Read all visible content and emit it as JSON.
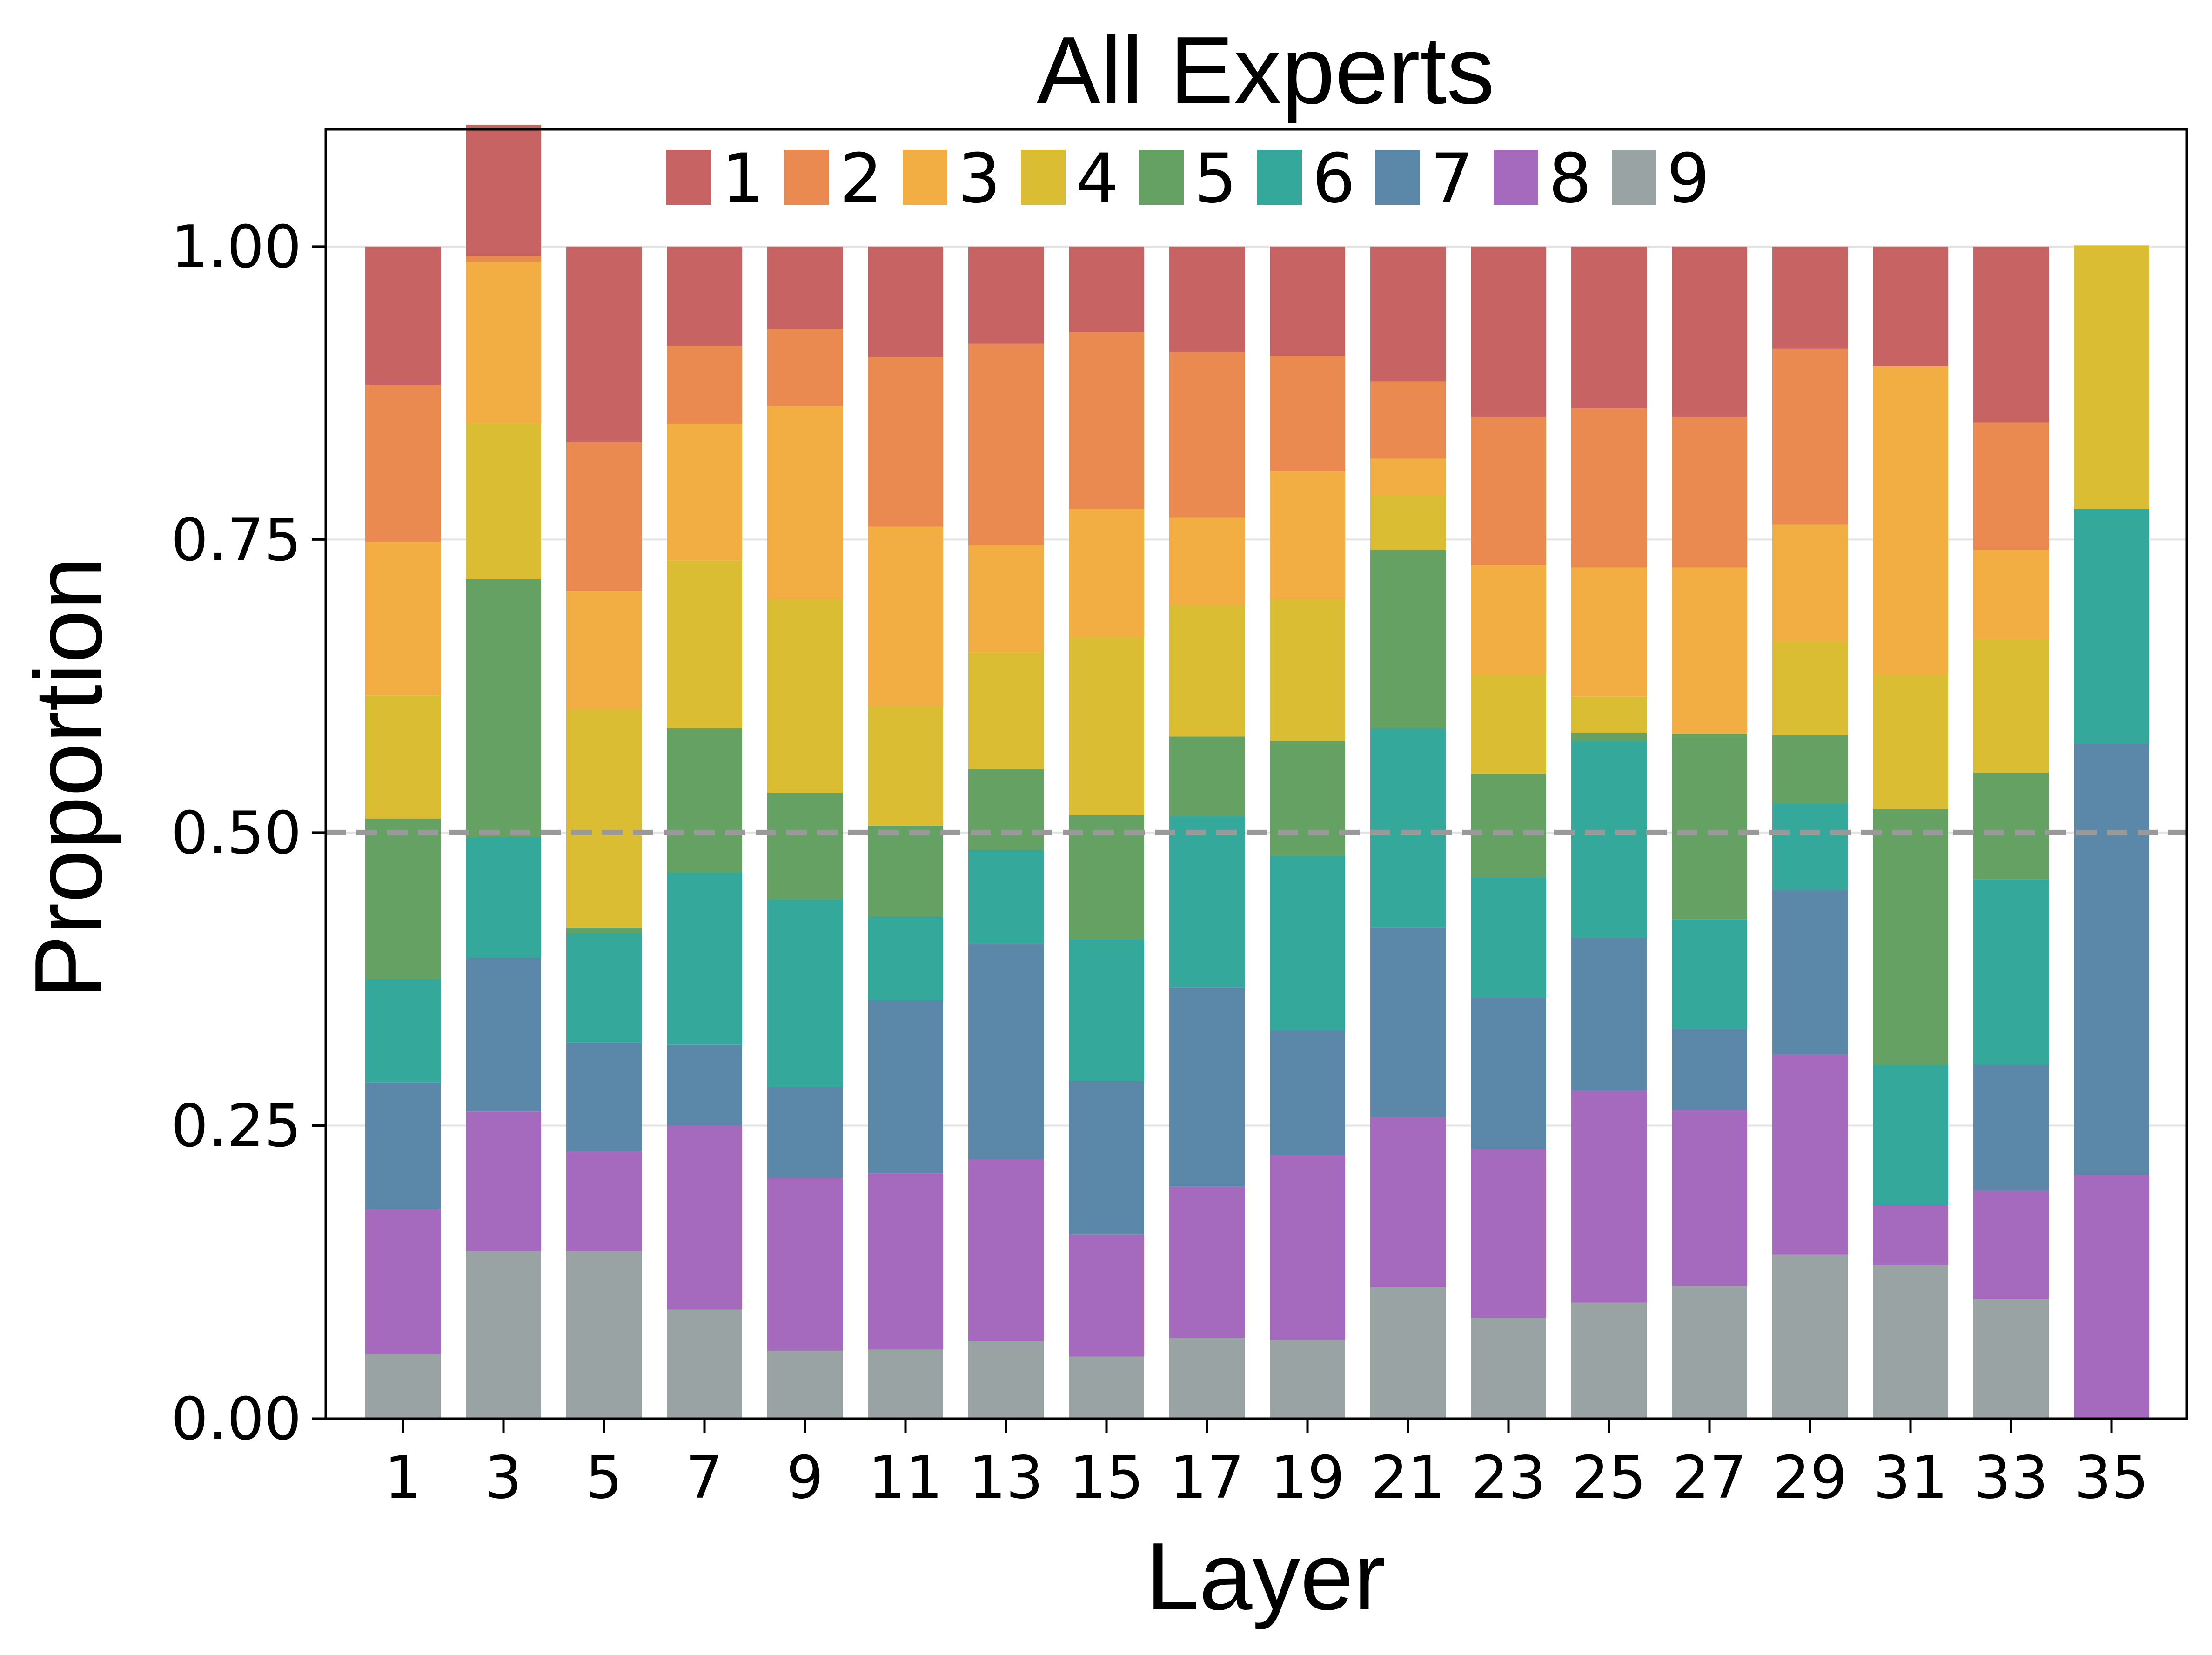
{
  "chart_data": {
    "type": "bar",
    "stacked": true,
    "title": "All Experts",
    "xlabel": "Layer",
    "ylabel": "Proportion",
    "ylim": [
      0,
      1.1
    ],
    "yticks": [
      "0.00",
      "0.25",
      "0.50",
      "0.75",
      "1.00"
    ],
    "ytick_values": [
      0,
      0.25,
      0.5,
      0.75,
      1.0
    ],
    "grid": "horizontal",
    "legend_position": "top-center",
    "reference_line": {
      "y": 0.5,
      "style": "dashed",
      "color": "#999999"
    },
    "categories": [
      "1",
      "3",
      "5",
      "7",
      "9",
      "11",
      "13",
      "15",
      "17",
      "19",
      "21",
      "23",
      "25",
      "27",
      "29",
      "31",
      "33",
      "35"
    ],
    "series": [
      {
        "name": "9",
        "color": "#99a3a4",
        "values": [
          0.055,
          0.143,
          0.143,
          0.093,
          0.058,
          0.059,
          0.066,
          0.053,
          0.069,
          0.067,
          0.112,
          0.086,
          0.099,
          0.113,
          0.14,
          0.131,
          0.102,
          0.0
        ]
      },
      {
        "name": "8",
        "color": "#a569bd",
        "values": [
          0.124,
          0.119,
          0.085,
          0.157,
          0.147,
          0.15,
          0.155,
          0.104,
          0.129,
          0.158,
          0.145,
          0.144,
          0.181,
          0.15,
          0.171,
          0.051,
          0.093,
          0.208
        ]
      },
      {
        "name": "7",
        "color": "#5b87a8",
        "values": [
          0.108,
          0.131,
          0.093,
          0.069,
          0.078,
          0.148,
          0.184,
          0.131,
          0.17,
          0.106,
          0.162,
          0.129,
          0.13,
          0.07,
          0.14,
          0.0,
          0.107,
          0.368
        ]
      },
      {
        "name": "6",
        "color": "#34a89b",
        "values": [
          0.088,
          0.103,
          0.093,
          0.147,
          0.16,
          0.071,
          0.08,
          0.121,
          0.146,
          0.149,
          0.17,
          0.103,
          0.168,
          0.093,
          0.074,
          0.12,
          0.158,
          0.2
        ]
      },
      {
        "name": "5",
        "color": "#64a162",
        "values": [
          0.137,
          0.22,
          0.005,
          0.123,
          0.091,
          0.078,
          0.069,
          0.106,
          0.068,
          0.098,
          0.152,
          0.088,
          0.007,
          0.158,
          0.058,
          0.218,
          0.091,
          0.0
        ]
      },
      {
        "name": "4",
        "color": "#dabd33",
        "values": [
          0.105,
          0.133,
          0.186,
          0.143,
          0.165,
          0.102,
          0.1,
          0.152,
          0.112,
          0.121,
          0.047,
          0.085,
          0.031,
          0.001,
          0.08,
          0.115,
          0.114,
          0.225
        ]
      },
      {
        "name": "3",
        "color": "#f3ae43",
        "values": [
          0.131,
          0.138,
          0.101,
          0.117,
          0.165,
          0.153,
          0.091,
          0.109,
          0.075,
          0.109,
          0.031,
          0.093,
          0.11,
          0.141,
          0.1,
          0.263,
          0.076,
          0.0
        ]
      },
      {
        "name": "2",
        "color": "#ea8a50",
        "values": [
          0.134,
          0.005,
          0.127,
          0.066,
          0.066,
          0.145,
          0.172,
          0.151,
          0.141,
          0.099,
          0.066,
          0.127,
          0.136,
          0.129,
          0.15,
          0.0,
          0.109,
          0.0
        ]
      },
      {
        "name": "1",
        "color": "#c86363",
        "values": [
          0.118,
          0.112,
          0.167,
          0.085,
          0.07,
          0.094,
          0.083,
          0.073,
          0.09,
          0.093,
          0.115,
          0.145,
          0.138,
          0.145,
          0.087,
          0.102,
          0.15,
          0.0
        ]
      }
    ],
    "legend_order": [
      "1",
      "2",
      "3",
      "4",
      "5",
      "6",
      "7",
      "8",
      "9"
    ]
  }
}
